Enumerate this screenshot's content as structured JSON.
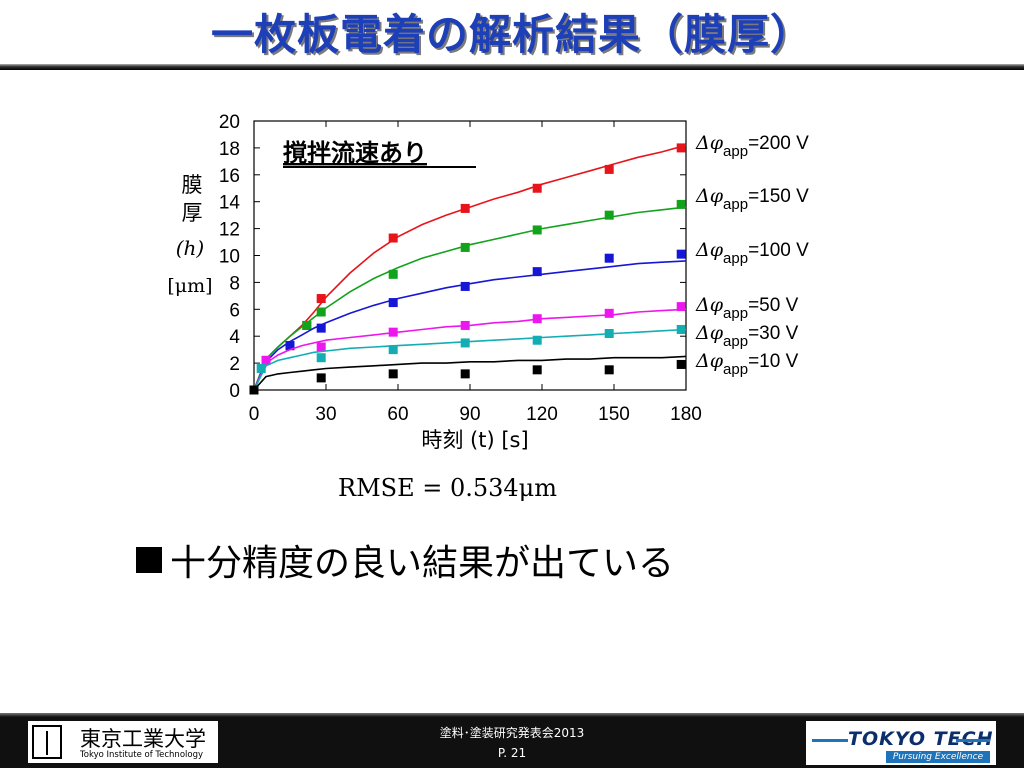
{
  "slide": {
    "title": "一枚板電着の解析結果（膜厚）",
    "rmse_text": "RMSE = 0.534μm",
    "bullet_text": "十分精度の良い結果が出ている"
  },
  "footer": {
    "event": "塗料･塗装研究発表会2013",
    "page": "P. 21",
    "logo_left_jp": "東京工業大学",
    "logo_left_en": "Tokyo Institute of Technology",
    "logo_right_text": "TOKYO TECH",
    "logo_right_sub": "Pursuing Excellence"
  },
  "chart_data": {
    "type": "scatter",
    "annotation": "撹拌流速あり",
    "ylabel": [
      "膜",
      "厚",
      "(h)",
      "[μm]"
    ],
    "xlabel": "時刻 (t) [s]",
    "xlim": [
      0,
      180
    ],
    "ylim": [
      0,
      20
    ],
    "xticks": [
      0,
      30,
      60,
      90,
      120,
      150,
      180
    ],
    "yticks": [
      0,
      2,
      4,
      6,
      8,
      10,
      12,
      14,
      16,
      18,
      20
    ],
    "grid": false,
    "legend_placement": "right",
    "series": [
      {
        "name": "Δφapp=200 V",
        "label_prefix": "Δφ",
        "label_sub": "app",
        "label_value": "=200 V",
        "color": "#e8141b",
        "points": [
          [
            0,
            0
          ],
          [
            5,
            2.2
          ],
          [
            15,
            3.3
          ],
          [
            22,
            4.8
          ],
          [
            28,
            6.8
          ],
          [
            58,
            11.3
          ],
          [
            88,
            13.5
          ],
          [
            118,
            15.0
          ],
          [
            148,
            16.4
          ],
          [
            178,
            18.0
          ]
        ],
        "fit": [
          [
            0,
            0
          ],
          [
            5,
            2.3
          ],
          [
            10,
            3.2
          ],
          [
            15,
            4.0
          ],
          [
            20,
            4.8
          ],
          [
            25,
            5.8
          ],
          [
            30,
            6.9
          ],
          [
            40,
            8.7
          ],
          [
            50,
            10.2
          ],
          [
            60,
            11.4
          ],
          [
            70,
            12.3
          ],
          [
            80,
            13.0
          ],
          [
            90,
            13.6
          ],
          [
            100,
            14.2
          ],
          [
            110,
            14.7
          ],
          [
            120,
            15.3
          ],
          [
            130,
            15.8
          ],
          [
            140,
            16.3
          ],
          [
            150,
            16.8
          ],
          [
            160,
            17.3
          ],
          [
            170,
            17.7
          ],
          [
            180,
            18.2
          ]
        ]
      },
      {
        "name": "Δφapp=150 V",
        "label_prefix": "Δφ",
        "label_sub": "app",
        "label_value": "=150 V",
        "color": "#13a21c",
        "points": [
          [
            0,
            0
          ],
          [
            5,
            2.2
          ],
          [
            15,
            3.3
          ],
          [
            22,
            4.8
          ],
          [
            28,
            5.8
          ],
          [
            58,
            8.6
          ],
          [
            88,
            10.6
          ],
          [
            118,
            11.9
          ],
          [
            148,
            13.0
          ],
          [
            178,
            13.8
          ]
        ],
        "fit": [
          [
            0,
            0
          ],
          [
            5,
            2.3
          ],
          [
            10,
            3.2
          ],
          [
            15,
            4.0
          ],
          [
            20,
            4.7
          ],
          [
            25,
            5.4
          ],
          [
            30,
            6.1
          ],
          [
            40,
            7.3
          ],
          [
            50,
            8.3
          ],
          [
            60,
            9.1
          ],
          [
            70,
            9.8
          ],
          [
            80,
            10.3
          ],
          [
            90,
            10.8
          ],
          [
            100,
            11.2
          ],
          [
            110,
            11.6
          ],
          [
            120,
            12.0
          ],
          [
            130,
            12.3
          ],
          [
            140,
            12.6
          ],
          [
            150,
            12.9
          ],
          [
            160,
            13.2
          ],
          [
            170,
            13.4
          ],
          [
            180,
            13.6
          ]
        ]
      },
      {
        "name": "Δφapp=100 V",
        "label_prefix": "Δφ",
        "label_sub": "app",
        "label_value": "=100 V",
        "color": "#1616d6",
        "points": [
          [
            0,
            0
          ],
          [
            15,
            3.3
          ],
          [
            28,
            4.6
          ],
          [
            58,
            6.5
          ],
          [
            88,
            7.7
          ],
          [
            118,
            8.8
          ],
          [
            148,
            9.8
          ],
          [
            178,
            10.1
          ]
        ],
        "fit": [
          [
            0,
            0
          ],
          [
            5,
            2.1
          ],
          [
            10,
            3.0
          ],
          [
            15,
            3.6
          ],
          [
            20,
            4.1
          ],
          [
            25,
            4.6
          ],
          [
            30,
            5.0
          ],
          [
            40,
            5.7
          ],
          [
            50,
            6.3
          ],
          [
            60,
            6.8
          ],
          [
            70,
            7.2
          ],
          [
            80,
            7.6
          ],
          [
            90,
            7.9
          ],
          [
            100,
            8.2
          ],
          [
            110,
            8.4
          ],
          [
            120,
            8.6
          ],
          [
            130,
            8.8
          ],
          [
            140,
            9.0
          ],
          [
            150,
            9.2
          ],
          [
            160,
            9.4
          ],
          [
            170,
            9.5
          ],
          [
            180,
            9.6
          ]
        ]
      },
      {
        "name": "Δφapp=50 V",
        "label_prefix": "Δφ",
        "label_sub": "app",
        "label_value": "=50 V",
        "color": "#ee16ee",
        "points": [
          [
            0,
            0
          ],
          [
            5,
            2.2
          ],
          [
            28,
            3.2
          ],
          [
            58,
            4.3
          ],
          [
            88,
            4.8
          ],
          [
            118,
            5.3
          ],
          [
            148,
            5.7
          ],
          [
            178,
            6.2
          ]
        ],
        "fit": [
          [
            0,
            0
          ],
          [
            5,
            2.0
          ],
          [
            10,
            2.6
          ],
          [
            15,
            3.0
          ],
          [
            20,
            3.3
          ],
          [
            25,
            3.5
          ],
          [
            30,
            3.7
          ],
          [
            40,
            3.9
          ],
          [
            50,
            4.1
          ],
          [
            60,
            4.3
          ],
          [
            70,
            4.5
          ],
          [
            80,
            4.7
          ],
          [
            90,
            4.8
          ],
          [
            100,
            5.0
          ],
          [
            110,
            5.1
          ],
          [
            120,
            5.3
          ],
          [
            130,
            5.4
          ],
          [
            140,
            5.5
          ],
          [
            150,
            5.6
          ],
          [
            160,
            5.8
          ],
          [
            170,
            5.9
          ],
          [
            180,
            6.0
          ]
        ]
      },
      {
        "name": "Δφapp=30 V",
        "label_prefix": "Δφ",
        "label_sub": "app",
        "label_value": "=30 V",
        "color": "#13aeb4",
        "points": [
          [
            0,
            0
          ],
          [
            3,
            1.6
          ],
          [
            28,
            2.4
          ],
          [
            58,
            3.0
          ],
          [
            88,
            3.5
          ],
          [
            118,
            3.7
          ],
          [
            148,
            4.2
          ],
          [
            178,
            4.5
          ]
        ],
        "fit": [
          [
            0,
            0
          ],
          [
            5,
            1.8
          ],
          [
            10,
            2.2
          ],
          [
            15,
            2.4
          ],
          [
            20,
            2.6
          ],
          [
            25,
            2.8
          ],
          [
            30,
            2.9
          ],
          [
            40,
            3.1
          ],
          [
            50,
            3.2
          ],
          [
            60,
            3.3
          ],
          [
            70,
            3.4
          ],
          [
            80,
            3.5
          ],
          [
            90,
            3.6
          ],
          [
            100,
            3.7
          ],
          [
            110,
            3.8
          ],
          [
            120,
            3.9
          ],
          [
            130,
            4.0
          ],
          [
            140,
            4.1
          ],
          [
            150,
            4.2
          ],
          [
            160,
            4.3
          ],
          [
            170,
            4.4
          ],
          [
            180,
            4.5
          ]
        ]
      },
      {
        "name": "Δφapp=10 V",
        "label_prefix": "Δφ",
        "label_sub": "app",
        "label_value": "=10 V",
        "color": "#000000",
        "points": [
          [
            0,
            0
          ],
          [
            28,
            0.9
          ],
          [
            58,
            1.2
          ],
          [
            88,
            1.2
          ],
          [
            118,
            1.5
          ],
          [
            148,
            1.5
          ],
          [
            178,
            1.9
          ]
        ],
        "fit": [
          [
            0,
            0
          ],
          [
            5,
            1.0
          ],
          [
            10,
            1.2
          ],
          [
            15,
            1.3
          ],
          [
            20,
            1.4
          ],
          [
            25,
            1.5
          ],
          [
            30,
            1.6
          ],
          [
            40,
            1.7
          ],
          [
            50,
            1.8
          ],
          [
            60,
            1.9
          ],
          [
            70,
            2.0
          ],
          [
            80,
            2.0
          ],
          [
            90,
            2.1
          ],
          [
            100,
            2.1
          ],
          [
            110,
            2.2
          ],
          [
            120,
            2.2
          ],
          [
            130,
            2.3
          ],
          [
            140,
            2.3
          ],
          [
            150,
            2.4
          ],
          [
            160,
            2.4
          ],
          [
            170,
            2.4
          ],
          [
            180,
            2.5
          ]
        ]
      }
    ]
  }
}
